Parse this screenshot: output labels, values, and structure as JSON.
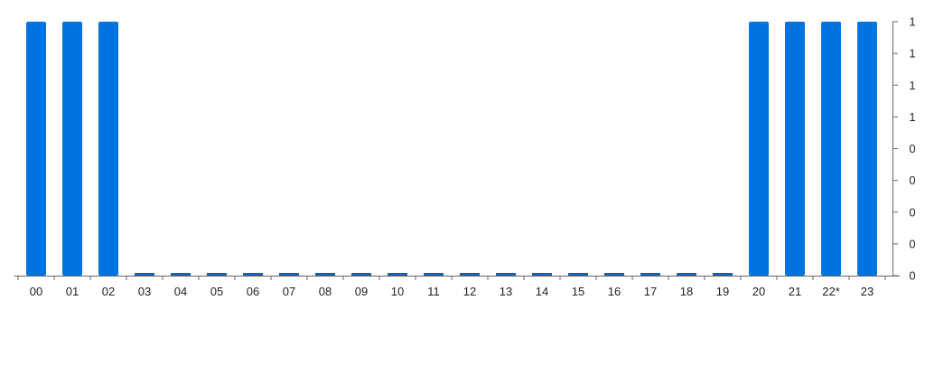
{
  "chart_data": {
    "type": "bar",
    "title": "",
    "xlabel": "",
    "ylabel": "",
    "categories": [
      "00",
      "01",
      "02",
      "03",
      "04",
      "05",
      "06",
      "07",
      "08",
      "09",
      "10",
      "11",
      "12",
      "13",
      "14",
      "15",
      "16",
      "17",
      "18",
      "19",
      "20",
      "21",
      "22*",
      "23"
    ],
    "values": [
      1,
      1,
      1,
      0,
      0,
      0,
      0,
      0,
      0,
      0,
      0,
      0,
      0,
      0,
      0,
      0,
      0,
      0,
      0,
      0,
      1,
      1,
      1,
      1
    ],
    "y_tick_labels": [
      "0",
      "0",
      "0",
      "0",
      "0",
      "1",
      "1",
      "1",
      "1"
    ],
    "ylim": [
      0,
      1
    ],
    "y_axis_position": "right",
    "grid": false,
    "legend": "none",
    "colors": {
      "bar_full": "#0073DE",
      "bar_zero": "#1F5FA8",
      "axis": "#666666",
      "text": "#222222"
    }
  }
}
